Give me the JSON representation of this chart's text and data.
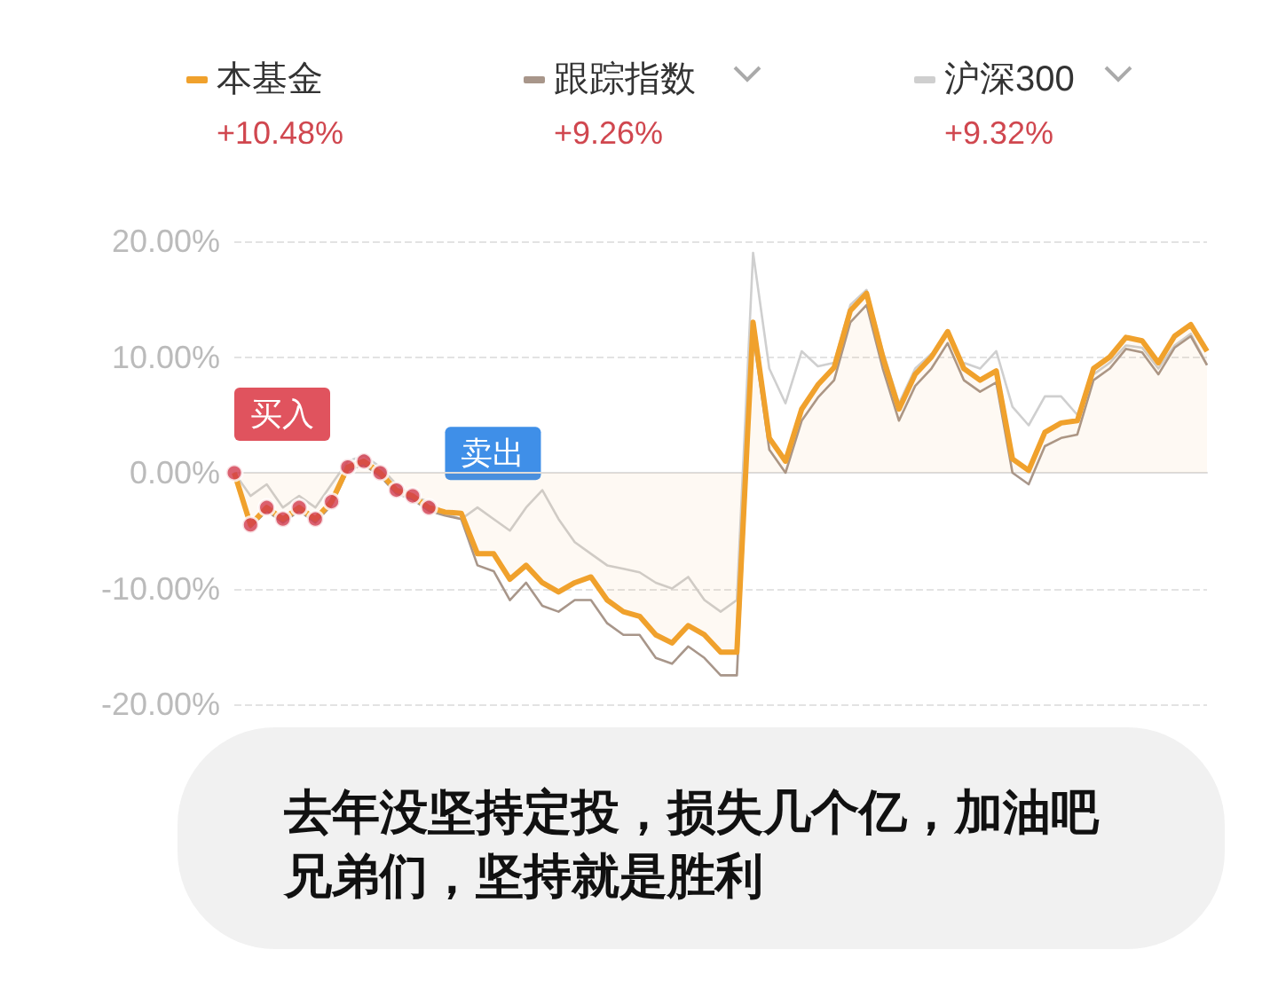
{
  "chart_data": {
    "type": "line",
    "categories": [
      null,
      null,
      null,
      null,
      null,
      null,
      null,
      null,
      null,
      null,
      null,
      null,
      null,
      null,
      null,
      null,
      null,
      null,
      null,
      null,
      null,
      null,
      null,
      null,
      null,
      null,
      null,
      null,
      null,
      null,
      null,
      null,
      null,
      null,
      null,
      null,
      null,
      null,
      null,
      null,
      null,
      null,
      null,
      null,
      null,
      null,
      null,
      null,
      null,
      null,
      null,
      null,
      null,
      null,
      null,
      null,
      null,
      null,
      null,
      null,
      null
    ],
    "series": [
      {
        "name": "沪深300",
        "color": "#cfcfcf",
        "values": [
          0,
          -2,
          -1,
          -3,
          -2,
          -3,
          -1,
          1,
          1.5,
          0.5,
          -1,
          -2,
          -2.5,
          -3.5,
          -4,
          -3,
          -4,
          -5,
          -3,
          -1.5,
          -4,
          -6,
          -7,
          -8,
          -8.3,
          -8.6,
          -9.5,
          -10,
          -9,
          -11,
          -12,
          -11,
          19,
          9,
          6,
          10.5,
          9.2,
          9.5,
          14.5,
          15.8,
          10.5,
          6,
          9,
          10.3,
          null,
          9.5,
          9,
          10.5,
          5.7,
          4.1,
          6.6,
          6.6,
          5,
          8.5,
          9.5,
          11,
          10.8,
          9,
          11,
          12,
          9.3
        ]
      },
      {
        "name": "跟踪指数",
        "color": "#a8968a",
        "values": [
          0,
          -4.7,
          -3.3,
          -4.3,
          -3.3,
          -4.3,
          -2.8,
          0.2,
          0.7,
          -0.3,
          -1.8,
          -2.3,
          -3.3,
          -3.7,
          -4,
          -8,
          -8.5,
          -11,
          -9.5,
          -11.5,
          -12,
          -11,
          -11,
          -13,
          -14,
          -14,
          -16,
          -16.5,
          -15,
          -16,
          -17.5,
          -17.5,
          12,
          2,
          0,
          4.5,
          6.5,
          8,
          13,
          14.5,
          9,
          4.5,
          7.5,
          9,
          11.2,
          8,
          7,
          7.8,
          0,
          -1,
          2.3,
          3,
          3.3,
          8,
          9,
          10.7,
          10.4,
          8.5,
          10.8,
          11.8,
          9.3
        ]
      },
      {
        "name": "本基金",
        "color": "#f0a12c",
        "values": [
          0,
          -4.5,
          -3,
          -4,
          -3,
          -4,
          -2.5,
          0.5,
          1,
          0,
          -1.5,
          -2,
          -3,
          -3.4,
          -3.5,
          -7,
          -7,
          -9.2,
          -8,
          -9.5,
          -10.3,
          -9.5,
          -9,
          -11,
          -12,
          -12.4,
          -14,
          -14.7,
          -13.2,
          -14,
          -15.5,
          -15.5,
          13,
          3,
          1,
          5.5,
          7.6,
          9.1,
          14,
          15.5,
          10,
          5.5,
          8.5,
          10,
          12.2,
          9,
          8,
          8.8,
          1.2,
          0.2,
          3.5,
          4.3,
          4.5,
          9,
          10,
          11.7,
          11.4,
          9.5,
          11.8,
          12.8,
          10.5
        ]
      },
      {
        "type": "scatter",
        "marker": "circle",
        "color": "#d23a4c",
        "values": [
          0,
          -4.5,
          -3,
          -4,
          -3,
          -4,
          -2.5,
          0.5,
          1,
          0,
          -1.5,
          -2,
          -3,
          null,
          null,
          null,
          null,
          null,
          null,
          null,
          null,
          null,
          null,
          null,
          null,
          null,
          null,
          null,
          null,
          null,
          null,
          null,
          null,
          null,
          null,
          null,
          null,
          null,
          null,
          null,
          null,
          null,
          null,
          null,
          null,
          null,
          null,
          null,
          null,
          null,
          null,
          null,
          null,
          null,
          null,
          null,
          null,
          null,
          null,
          null,
          null
        ]
      }
    ],
    "ylim": [
      -20,
      20
    ],
    "yticks": [
      {
        "value": -20,
        "label": "-20.00%"
      },
      {
        "value": -10,
        "label": "-10.00%"
      },
      {
        "value": 0,
        "label": "0.00%"
      },
      {
        "value": 10,
        "label": "10.00%"
      },
      {
        "value": 20,
        "label": "20.00%"
      }
    ],
    "grid": "y",
    "legend": "top",
    "annotations": [
      "+10.48%",
      "+9.26%",
      "+9.32%",
      "买入",
      "卖出",
      "去年没坚持定投，损失几个亿，加油吧兄弟们，坚持就是胜利"
    ]
  }
}
